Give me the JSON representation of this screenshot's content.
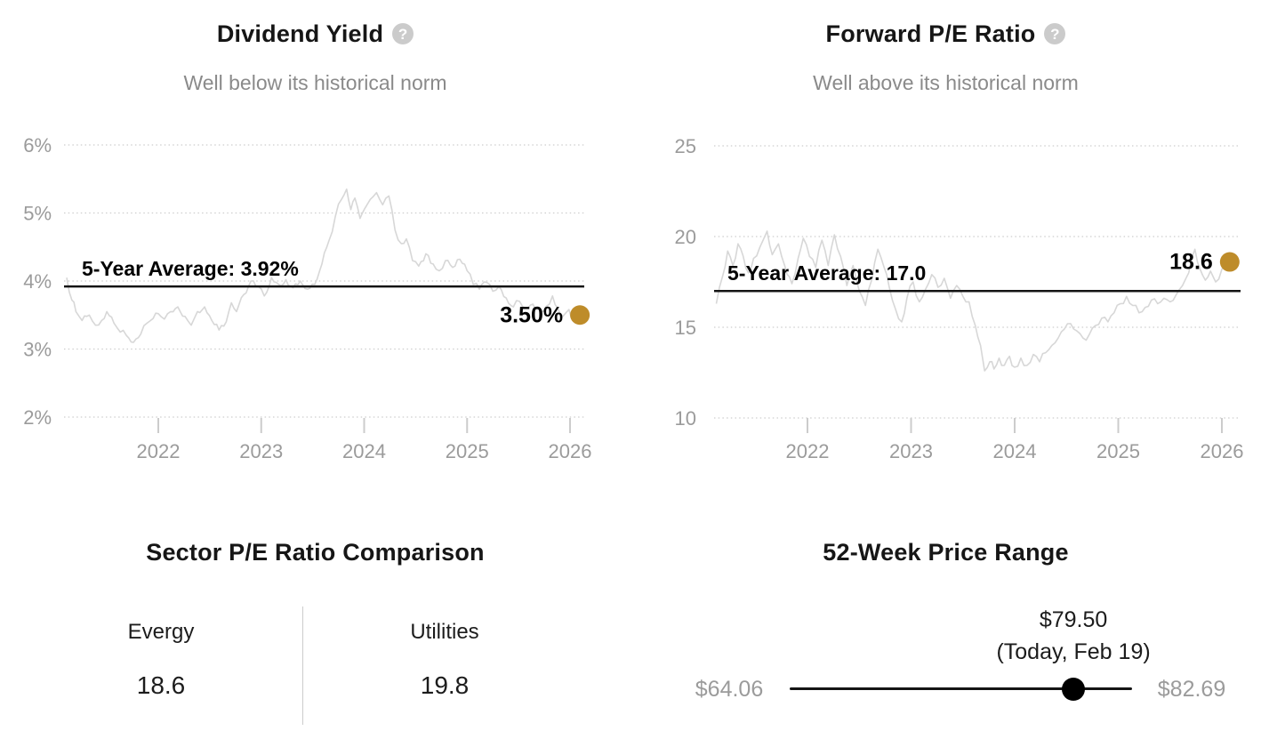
{
  "icons": {
    "help": "?"
  },
  "colors": {
    "background": "#ffffff",
    "title": "#161616",
    "subtitle": "#8a8a8a",
    "axis": "#9b9b9b",
    "gridline": "#cdcdcd",
    "tick": "#cccccc",
    "series": "#d7d7d7",
    "average_line": "#141414",
    "accent_dot": "#be8c2a",
    "muted": "#9b9b9b",
    "divider": "#cccccc",
    "rangeline": "#141414",
    "rangedot": "#000000"
  },
  "chart_data": [
    {
      "id": "dividend-yield",
      "type": "line",
      "title": "Dividend Yield",
      "subtitle": "Well below its historical norm",
      "unit": "%",
      "grid": "horizontal-dotted",
      "legend": "none",
      "ylim": [
        2,
        6
      ],
      "xlim": [
        2021.1,
        2026.15
      ],
      "yticks": [
        {
          "value": 6,
          "label": "6%"
        },
        {
          "value": 5,
          "label": "5%"
        },
        {
          "value": 4,
          "label": "4%"
        },
        {
          "value": 3,
          "label": "3%"
        },
        {
          "value": 2,
          "label": "2%"
        }
      ],
      "xticks": [
        {
          "value": 2022,
          "label": "2022"
        },
        {
          "value": 2023,
          "label": "2023"
        },
        {
          "value": 2024,
          "label": "2024"
        },
        {
          "value": 2025,
          "label": "2025"
        },
        {
          "value": 2026,
          "label": "2026"
        }
      ],
      "average": {
        "label": "5-Year Average: 3.92%",
        "value": 3.92
      },
      "current": {
        "label": "3.50%",
        "value": 3.5
      },
      "x": [
        2021.11,
        2021.16,
        2021.2,
        2021.26,
        2021.33,
        2021.39,
        2021.45,
        2021.5,
        2021.57,
        2021.63,
        2021.69,
        2021.76,
        2021.83,
        2021.89,
        2021.95,
        2022.0,
        2022.06,
        2022.12,
        2022.19,
        2022.26,
        2022.32,
        2022.38,
        2022.45,
        2022.52,
        2022.59,
        2022.66,
        2022.71,
        2022.76,
        2022.83,
        2022.9,
        2022.97,
        2023.03,
        2023.1,
        2023.17,
        2023.24,
        2023.31,
        2023.38,
        2023.45,
        2023.52,
        2023.59,
        2023.66,
        2023.72,
        2023.78,
        2023.83,
        2023.87,
        2023.91,
        2023.96,
        2024.0,
        2024.06,
        2024.12,
        2024.18,
        2024.24,
        2024.3,
        2024.36,
        2024.41,
        2024.47,
        2024.53,
        2024.6,
        2024.67,
        2024.73,
        2024.79,
        2024.86,
        2024.93,
        2025.0,
        2025.06,
        2025.12,
        2025.19,
        2025.25,
        2025.31,
        2025.38,
        2025.45,
        2025.51,
        2025.57,
        2025.64,
        2025.71,
        2025.77,
        2025.83,
        2025.88,
        2025.93,
        2025.99,
        2026.03,
        2026.07
      ],
      "values": [
        4.05,
        3.72,
        3.55,
        3.42,
        3.5,
        3.35,
        3.42,
        3.55,
        3.38,
        3.25,
        3.2,
        3.1,
        3.22,
        3.38,
        3.45,
        3.52,
        3.44,
        3.55,
        3.62,
        3.48,
        3.35,
        3.55,
        3.62,
        3.42,
        3.28,
        3.4,
        3.68,
        3.55,
        3.8,
        4.0,
        3.92,
        3.78,
        4.05,
        3.95,
        4.02,
        3.9,
        4.0,
        3.88,
        3.95,
        4.25,
        4.6,
        4.95,
        5.2,
        5.35,
        5.05,
        5.22,
        4.92,
        5.05,
        5.2,
        5.3,
        5.12,
        5.25,
        4.75,
        4.55,
        4.62,
        4.3,
        4.22,
        4.4,
        4.25,
        4.15,
        4.3,
        4.2,
        4.32,
        4.15,
        3.95,
        3.88,
        3.98,
        3.85,
        3.92,
        3.75,
        3.62,
        3.7,
        3.6,
        3.66,
        3.58,
        3.63,
        3.78,
        3.6,
        3.48,
        3.58,
        3.45,
        3.5
      ]
    },
    {
      "id": "forward-pe-ratio",
      "type": "line",
      "title": "Forward P/E Ratio",
      "subtitle": "Well above its historical norm",
      "unit": "",
      "grid": "horizontal-dotted",
      "legend": "none",
      "ylim": [
        10,
        25
      ],
      "xlim": [
        2021.1,
        2026.1
      ],
      "yticks": [
        {
          "value": 25,
          "label": "25"
        },
        {
          "value": 20,
          "label": "20"
        },
        {
          "value": 15,
          "label": "15"
        },
        {
          "value": 10,
          "label": "10"
        }
      ],
      "xticks": [
        {
          "value": 2022,
          "label": "2022"
        },
        {
          "value": 2023,
          "label": "2023"
        },
        {
          "value": 2024,
          "label": "2024"
        },
        {
          "value": 2025,
          "label": "2025"
        },
        {
          "value": 2026,
          "label": "2026"
        }
      ],
      "average": {
        "label": "5-Year Average: 17.0",
        "value": 17.0
      },
      "current": {
        "label": "18.6",
        "value": 18.6
      },
      "x": [
        2021.12,
        2021.18,
        2021.23,
        2021.28,
        2021.33,
        2021.38,
        2021.43,
        2021.48,
        2021.54,
        2021.61,
        2021.66,
        2021.72,
        2021.78,
        2021.85,
        2021.91,
        2021.96,
        2022.02,
        2022.08,
        2022.14,
        2022.2,
        2022.26,
        2022.32,
        2022.38,
        2022.44,
        2022.5,
        2022.56,
        2022.62,
        2022.68,
        2022.74,
        2022.79,
        2022.85,
        2022.91,
        2022.96,
        2023.02,
        2023.08,
        2023.14,
        2023.2,
        2023.26,
        2023.32,
        2023.38,
        2023.44,
        2023.5,
        2023.56,
        2023.62,
        2023.67,
        2023.71,
        2023.76,
        2023.8,
        2023.85,
        2023.9,
        2023.95,
        2024.0,
        2024.06,
        2024.12,
        2024.18,
        2024.24,
        2024.3,
        2024.36,
        2024.42,
        2024.48,
        2024.54,
        2024.6,
        2024.66,
        2024.72,
        2024.78,
        2024.84,
        2024.9,
        2024.96,
        2025.02,
        2025.08,
        2025.14,
        2025.2,
        2025.26,
        2025.32,
        2025.38,
        2025.44,
        2025.5,
        2025.56,
        2025.62,
        2025.68,
        2025.74,
        2025.79,
        2025.84,
        2025.89,
        2025.94,
        2026.0,
        2026.05
      ],
      "values": [
        16.3,
        17.8,
        19.2,
        18.4,
        19.6,
        18.9,
        18.0,
        18.8,
        19.4,
        20.3,
        19.0,
        19.6,
        18.4,
        17.4,
        18.8,
        19.9,
        18.9,
        18.3,
        19.8,
        18.4,
        20.1,
        18.9,
        17.3,
        18.4,
        17.0,
        16.2,
        17.6,
        19.3,
        18.3,
        17.2,
        16.0,
        15.3,
        16.6,
        17.5,
        16.4,
        17.1,
        17.9,
        17.2,
        17.7,
        16.6,
        17.3,
        16.7,
        16.4,
        15.1,
        14.0,
        12.6,
        13.1,
        12.7,
        13.3,
        12.9,
        13.4,
        12.8,
        13.3,
        12.9,
        13.5,
        13.1,
        13.6,
        14.0,
        14.4,
        14.9,
        15.2,
        14.8,
        14.4,
        14.6,
        15.1,
        15.5,
        15.3,
        15.8,
        16.3,
        16.7,
        16.2,
        15.8,
        16.1,
        16.5,
        16.3,
        16.6,
        16.4,
        16.8,
        17.3,
        18.0,
        19.3,
        18.2,
        17.6,
        18.1,
        17.5,
        18.2,
        18.6
      ]
    },
    {
      "id": "sector-pe-comparison",
      "type": "table",
      "title": "Sector P/E Ratio Comparison",
      "items": [
        {
          "label": "Evergy",
          "value": "18.6"
        },
        {
          "label": "Utilities",
          "value": "19.8"
        }
      ]
    },
    {
      "id": "52-week-price-range",
      "type": "range",
      "title": "52-Week Price Range",
      "low": 64.06,
      "high": 82.69,
      "current": 79.5,
      "low_label": "$64.06",
      "high_label": "$82.69",
      "current_label": "$79.50",
      "current_sub": "(Today, Feb 19)"
    }
  ]
}
